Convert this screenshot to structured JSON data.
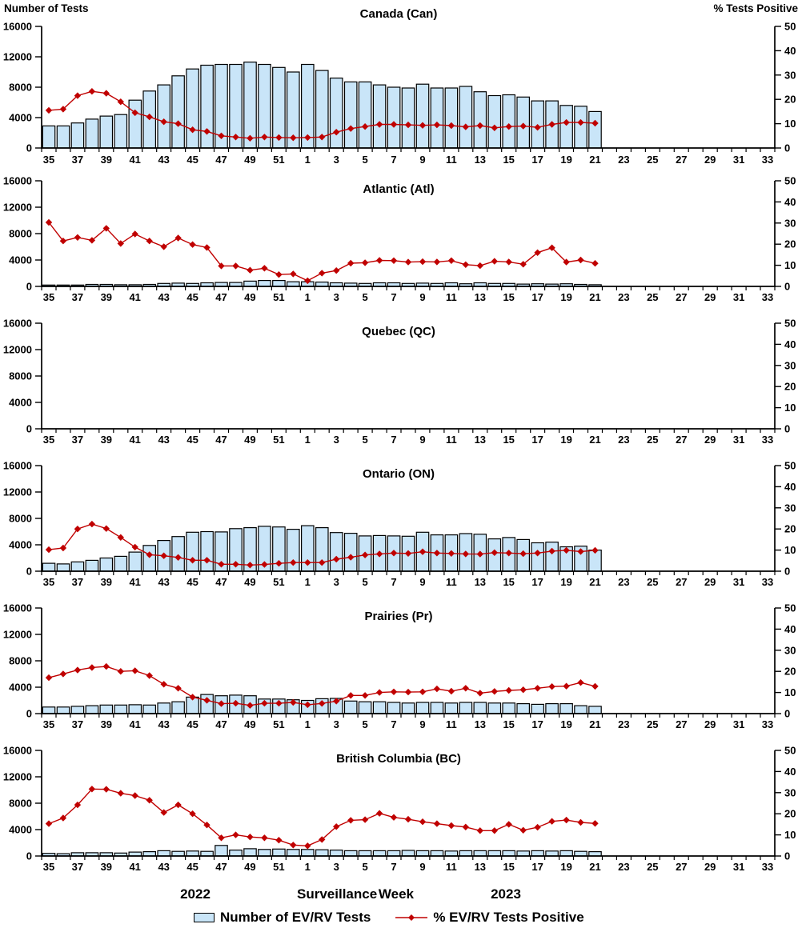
{
  "figure": {
    "left_axis_title": "Number of Tests",
    "right_axis_title": "% Tests Positive",
    "x_axis_label": "Surveillance Week",
    "year_left": "2022",
    "year_right": "2023"
  },
  "legend": {
    "bar_label": "Number of EV/RV Tests",
    "line_label": "% EV/RV Tests Positive",
    "bar_color": "#C9E5F8",
    "line_color": "#C00000"
  },
  "chart_data": {
    "type": "bar+line dual-axis, 6 stacked region panels",
    "x_tick_labels": [
      "35",
      "37",
      "39",
      "41",
      "43",
      "45",
      "47",
      "49",
      "51",
      "1",
      "3",
      "5",
      "7",
      "9",
      "11",
      "13",
      "15",
      "17",
      "19",
      "21",
      "23",
      "25",
      "27",
      "29",
      "31",
      "33"
    ],
    "weeks": [
      35,
      36,
      37,
      38,
      39,
      40,
      41,
      42,
      43,
      44,
      45,
      46,
      47,
      48,
      49,
      50,
      51,
      52,
      1,
      2,
      3,
      4,
      5,
      6,
      7,
      8,
      9,
      10,
      11,
      12,
      13,
      14,
      15,
      16,
      17,
      18,
      19,
      20,
      21
    ],
    "x_range_weeks": "week 35 of 2022 through week 33 of 2023 (data plotted to week 21 of 2023)",
    "left_axis": {
      "label": "Number of Tests",
      "ticks": [
        0,
        4000,
        8000,
        12000,
        16000
      ],
      "range": [
        0,
        16000
      ]
    },
    "right_axis": {
      "label": "% Tests Positive",
      "ticks": [
        0,
        10,
        20,
        30,
        40,
        50
      ],
      "range": [
        0,
        50
      ]
    },
    "panels": [
      {
        "title": "Canada (Can)",
        "tests": [
          2900,
          2900,
          3300,
          3800,
          4200,
          4400,
          6300,
          7500,
          8300,
          9500,
          10400,
          10900,
          11000,
          11000,
          11300,
          11000,
          10600,
          10000,
          11000,
          10200,
          9200,
          8700,
          8700,
          8300,
          8000,
          7900,
          8400,
          7900,
          7900,
          8100,
          7400,
          6900,
          7000,
          6700,
          6200,
          6200,
          5600,
          5500,
          4800
        ],
        "pct_positive": [
          15.5,
          16,
          21.5,
          23.3,
          22.5,
          19,
          14.5,
          12.8,
          10.8,
          10,
          7.5,
          6.8,
          5,
          4.5,
          4,
          4.5,
          4.3,
          4.2,
          4.3,
          4.5,
          6.5,
          8,
          8.8,
          9.7,
          9.7,
          9.5,
          9.3,
          9.5,
          9.2,
          8.7,
          9.2,
          8.3,
          8.8,
          9,
          8.5,
          9.7,
          10.5,
          10.5,
          10.2
        ]
      },
      {
        "title": "Atlantic (Atl)",
        "tests": [
          200,
          200,
          200,
          300,
          300,
          250,
          250,
          300,
          450,
          500,
          450,
          550,
          600,
          600,
          800,
          900,
          900,
          700,
          700,
          650,
          550,
          500,
          450,
          550,
          550,
          450,
          500,
          450,
          550,
          400,
          550,
          450,
          450,
          350,
          400,
          350,
          400,
          300,
          250
        ],
        "pct_positive": [
          30.3,
          21.5,
          23.2,
          21.8,
          27.5,
          20.3,
          24.8,
          21.5,
          18.8,
          22.9,
          19.8,
          18.4,
          9.7,
          9.7,
          7.7,
          8.6,
          5.6,
          5.9,
          2.7,
          6.3,
          7.5,
          11,
          11.2,
          12.3,
          12.2,
          11.5,
          11.7,
          11.6,
          12.2,
          10.3,
          9.8,
          11.9,
          11.6,
          10.5,
          16,
          18.3,
          11.5,
          12.5,
          10.9
        ]
      },
      {
        "title": "Quebec (QC)",
        "tests": [],
        "pct_positive": []
      },
      {
        "title": "Ontario (ON)",
        "tests": [
          1200,
          1100,
          1400,
          1650,
          2000,
          2250,
          2900,
          3900,
          4650,
          5250,
          5900,
          6000,
          5950,
          6450,
          6600,
          6800,
          6700,
          6350,
          6900,
          6600,
          5850,
          5750,
          5350,
          5400,
          5350,
          5300,
          5900,
          5500,
          5500,
          5700,
          5600,
          4900,
          5100,
          4800,
          4300,
          4400,
          3700,
          3800,
          3200
        ],
        "pct_positive": [
          10.2,
          11,
          20,
          22.3,
          20.2,
          16,
          11.4,
          7.8,
          7.3,
          6.5,
          5.2,
          5.2,
          3.3,
          3.3,
          2.9,
          3.2,
          3.7,
          4.1,
          4.1,
          4.1,
          5.7,
          6.6,
          7.7,
          8.2,
          8.6,
          8.4,
          9.2,
          8.6,
          8.4,
          8.2,
          8.1,
          8.8,
          8.6,
          8.3,
          8.6,
          9.5,
          9.9,
          9.3,
          9.9
        ]
      },
      {
        "title": "Prairies (Pr)",
        "tests": [
          1000,
          1000,
          1100,
          1200,
          1300,
          1300,
          1350,
          1300,
          1600,
          1800,
          2500,
          2900,
          2700,
          2800,
          2700,
          2200,
          2200,
          2100,
          2000,
          2250,
          2300,
          1900,
          1800,
          1800,
          1700,
          1600,
          1700,
          1700,
          1600,
          1700,
          1700,
          1600,
          1600,
          1500,
          1400,
          1500,
          1500,
          1200,
          1100
        ],
        "pct_positive": [
          17,
          18.8,
          20.6,
          21.8,
          22.3,
          20,
          20.3,
          18,
          13.9,
          12,
          7.8,
          6.3,
          4.7,
          4.9,
          3.9,
          4.9,
          4.9,
          5.3,
          4.2,
          4.8,
          5.9,
          8.6,
          8.6,
          10,
          10.3,
          10.2,
          10.3,
          11.7,
          10.6,
          12,
          9.7,
          10.5,
          11,
          11.3,
          12,
          12.8,
          13,
          14.7,
          12.9
        ]
      },
      {
        "title": "British Columbia (BC)",
        "tests": [
          400,
          350,
          500,
          500,
          500,
          450,
          600,
          650,
          800,
          700,
          750,
          700,
          1600,
          900,
          1100,
          1000,
          1050,
          1000,
          1000,
          950,
          900,
          800,
          800,
          800,
          800,
          850,
          800,
          800,
          750,
          800,
          800,
          800,
          800,
          750,
          800,
          750,
          800,
          700,
          650
        ],
        "pct_positive": [
          15.3,
          18,
          24.2,
          31.7,
          31.6,
          29.7,
          28.6,
          26.4,
          20.6,
          24.2,
          20,
          14.7,
          8.6,
          10,
          9,
          8.6,
          7.5,
          5.2,
          4.8,
          7.8,
          13.9,
          16.9,
          17.2,
          20.2,
          18.3,
          17.4,
          16.2,
          15.3,
          14.4,
          13.7,
          12,
          12,
          15,
          12.2,
          13.6,
          16.4,
          17,
          15.9,
          15.4
        ]
      }
    ]
  }
}
